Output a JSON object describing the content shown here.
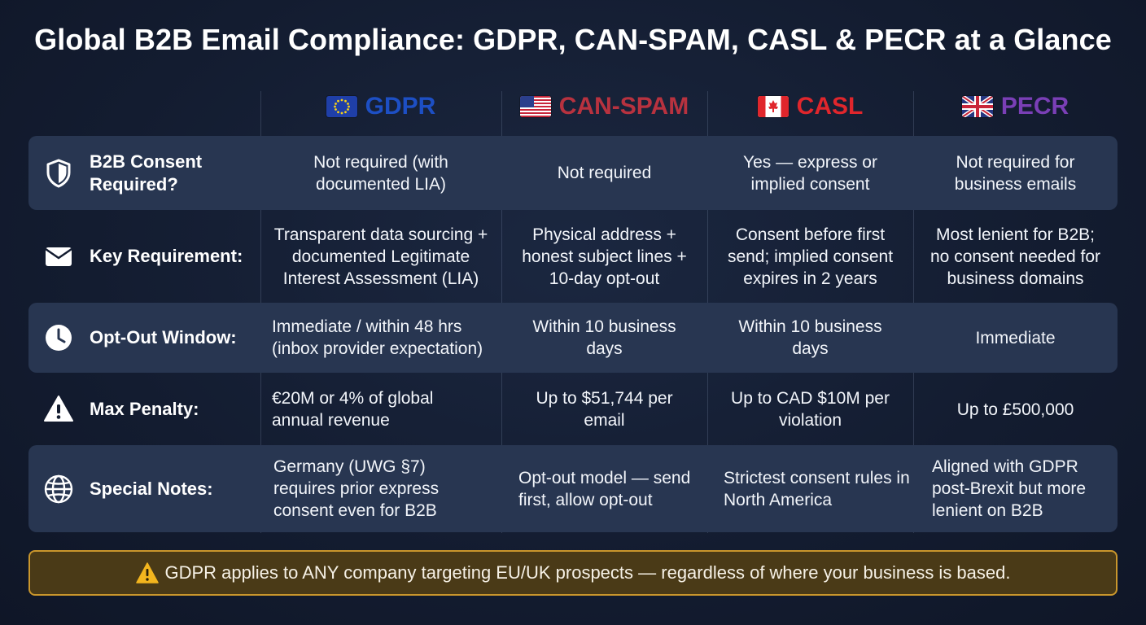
{
  "title": "Global B2B Email Compliance: GDPR, CAN-SPAM, CASL & PECR at a Glance",
  "colors": {
    "gdpr": "#1d4fc4",
    "canspam": "#b8323f",
    "casl": "#e0262c",
    "pecr": "#7a3fb6",
    "banner_border": "#c9962c"
  },
  "columns": [
    {
      "name": "GDPR",
      "flag": "eu-flag"
    },
    {
      "name": "CAN-SPAM",
      "flag": "us-flag"
    },
    {
      "name": "CASL",
      "flag": "canada-flag"
    },
    {
      "name": "PECR",
      "flag": "uk-flag"
    }
  ],
  "rows": [
    {
      "label": "B2B Consent Required?",
      "icon": "shield-icon",
      "cells": [
        "Not required (with documented LIA)",
        "Not required",
        "Yes — express or implied consent",
        "Not required for business emails"
      ]
    },
    {
      "label": "Key Requirement:",
      "icon": "envelope-icon",
      "cells": [
        "Transparent data sourcing + documented Legitimate Interest Assessment (LIA)",
        "Physical address + honest subject lines + 10-day opt-out",
        "Consent before first send; implied consent expires in 2 years",
        "Most lenient for B2B; no consent needed for business domains"
      ]
    },
    {
      "label": "Opt-Out Window:",
      "icon": "clock-icon",
      "cells": [
        "Immediate / within 48 hrs (inbox provider expectation)",
        "Within 10 business days",
        "Within 10 business days",
        "Immediate"
      ]
    },
    {
      "label": "Max Penalty:",
      "icon": "warning-icon",
      "cells": [
        "€20M or 4% of global annual revenue",
        "Up to $51,744 per email",
        "Up to CAD $10M per violation",
        "Up to £500,000"
      ]
    },
    {
      "label": "Special Notes:",
      "icon": "globe-icon",
      "cells": [
        "Germany (UWG §7) requires prior express consent even for B2B",
        "Opt-out model — send first, allow opt-out",
        "Strictest consent rules in North America",
        "Aligned with GDPR post-Brexit but more lenient on B2B"
      ]
    }
  ],
  "banner": "GDPR applies to ANY company targeting EU/UK prospects — regardless of where your business is based."
}
